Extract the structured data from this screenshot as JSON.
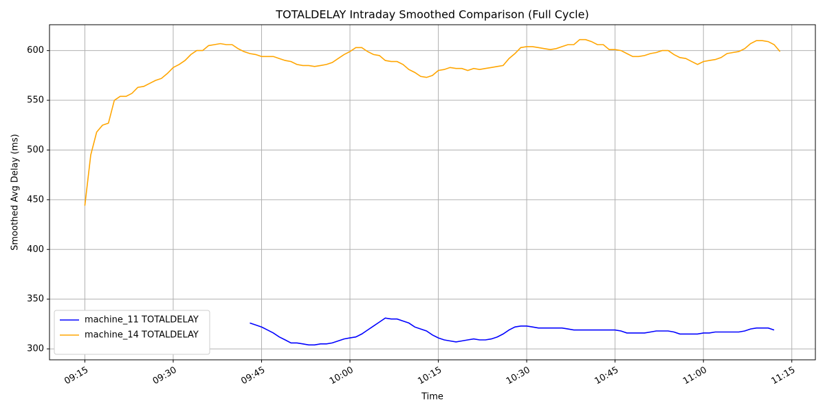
{
  "chart_data": {
    "type": "line",
    "title": "TOTALDELAY Intraday Smoothed Comparison (Full Cycle)",
    "x_label": "Time",
    "y_label": "Smoothed Avg Delay (ms)",
    "x": [
      "09:15",
      "09:16",
      "09:17",
      "09:18",
      "09:19",
      "09:20",
      "09:21",
      "09:22",
      "09:23",
      "09:24",
      "09:25",
      "09:26",
      "09:27",
      "09:28",
      "09:29",
      "09:30",
      "09:31",
      "09:32",
      "09:33",
      "09:34",
      "09:35",
      "09:36",
      "09:37",
      "09:38",
      "09:39",
      "09:40",
      "09:41",
      "09:42",
      "09:43",
      "09:44",
      "09:45",
      "09:46",
      "09:47",
      "09:48",
      "09:49",
      "09:50",
      "09:51",
      "09:52",
      "09:53",
      "09:54",
      "09:55",
      "09:56",
      "09:57",
      "09:58",
      "09:59",
      "10:00",
      "10:01",
      "10:02",
      "10:03",
      "10:04",
      "10:05",
      "10:06",
      "10:07",
      "10:08",
      "10:09",
      "10:10",
      "10:11",
      "10:12",
      "10:13",
      "10:14",
      "10:15",
      "10:16",
      "10:17",
      "10:18",
      "10:19",
      "10:20",
      "10:21",
      "10:22",
      "10:23",
      "10:24",
      "10:25",
      "10:26",
      "10:27",
      "10:28",
      "10:29",
      "10:30",
      "10:31",
      "10:32",
      "10:33",
      "10:34",
      "10:35",
      "10:36",
      "10:37",
      "10:38",
      "10:39",
      "10:40",
      "10:41",
      "10:42",
      "10:43",
      "10:44",
      "10:45",
      "10:46",
      "10:47",
      "10:48",
      "10:49",
      "10:50",
      "10:51",
      "10:52",
      "10:53",
      "10:54",
      "10:55",
      "10:56",
      "10:57",
      "10:58",
      "10:59",
      "11:00",
      "11:01",
      "11:02",
      "11:03",
      "11:04",
      "11:05",
      "11:06",
      "11:07",
      "11:08",
      "11:09",
      "11:10",
      "11:11",
      "11:12",
      "11:13"
    ],
    "series": [
      {
        "name": "machine_11 TOTALDELAY",
        "color": "#0000ff",
        "values": [
          null,
          null,
          null,
          null,
          null,
          null,
          null,
          null,
          null,
          null,
          null,
          null,
          null,
          null,
          null,
          null,
          null,
          null,
          null,
          null,
          null,
          null,
          null,
          null,
          null,
          null,
          null,
          null,
          326,
          324,
          322,
          319,
          316,
          312,
          309,
          306,
          306,
          305,
          304,
          304,
          305,
          305,
          306,
          308,
          310,
          311,
          312,
          315,
          319,
          323,
          327,
          331,
          330,
          330,
          328,
          326,
          322,
          320,
          318,
          314,
          311,
          309,
          308,
          307,
          308,
          309,
          310,
          309,
          309,
          310,
          312,
          315,
          319,
          322,
          323,
          323,
          322,
          321,
          321,
          321,
          321,
          321,
          320,
          319,
          319,
          319,
          319,
          319,
          319,
          319,
          319,
          318,
          316,
          316,
          316,
          316,
          317,
          318,
          318,
          318,
          317,
          315,
          315,
          315,
          315,
          316,
          316,
          317,
          317,
          317,
          317,
          317,
          318,
          320,
          321,
          321,
          321,
          319,
          null
        ]
      },
      {
        "name": "machine_14 TOTALDELAY",
        "color": "#ffa500",
        "values": [
          444,
          495,
          518,
          525,
          527,
          550,
          554,
          554,
          557,
          563,
          564,
          567,
          570,
          572,
          577,
          583,
          586,
          590,
          596,
          600,
          600,
          605,
          606,
          607,
          606,
          606,
          602,
          599,
          597,
          596,
          594,
          594,
          594,
          592,
          590,
          589,
          586,
          585,
          585,
          584,
          585,
          586,
          588,
          592,
          596,
          599,
          603,
          603,
          599,
          596,
          595,
          590,
          589,
          589,
          586,
          581,
          578,
          574,
          573,
          575,
          580,
          581,
          583,
          582,
          582,
          580,
          582,
          581,
          582,
          583,
          584,
          585,
          592,
          597,
          603,
          604,
          604,
          603,
          602,
          601,
          602,
          604,
          606,
          606,
          611,
          611,
          609,
          606,
          606,
          601,
          601,
          600,
          597,
          594,
          594,
          595,
          597,
          598,
          600,
          600,
          596,
          593,
          592,
          589,
          586,
          589,
          590,
          591,
          593,
          597,
          598,
          599,
          602,
          607,
          610,
          610,
          609,
          606,
          599
        ]
      }
    ],
    "xlim": [
      "09:09",
      "11:19"
    ],
    "xticks": [
      "09:15",
      "09:30",
      "09:45",
      "10:00",
      "10:15",
      "10:30",
      "10:45",
      "11:00",
      "11:15"
    ],
    "ylim": [
      289,
      626
    ],
    "yticks": [
      300,
      350,
      400,
      450,
      500,
      550,
      600
    ],
    "grid": true,
    "legend": "lower left"
  }
}
